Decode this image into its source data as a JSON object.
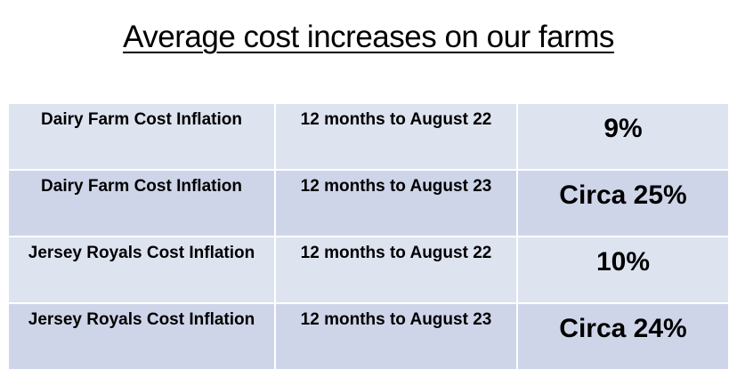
{
  "header": {
    "title": "Average cost increases on our farms"
  },
  "table": {
    "rows": [
      [
        "Dairy Farm Cost Inflation",
        "12 months to August 22",
        "9%"
      ],
      [
        "Dairy Farm Cost Inflation",
        "12 months to August 23",
        "Circa 25%"
      ],
      [
        "Jersey Royals Cost Inflation",
        "12 months to August 22",
        "10%"
      ],
      [
        "Jersey Royals Cost Inflation",
        "12 months to August 23",
        "Circa 24%"
      ]
    ]
  }
}
